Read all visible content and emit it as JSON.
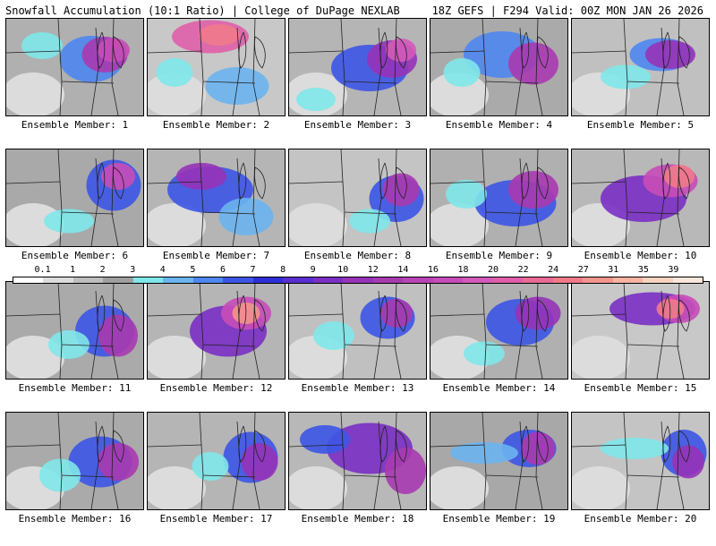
{
  "header": {
    "left_title": "Snowfall Accumulation (10:1 Ratio) | College of DuPage NEXLAB",
    "right_title": "18Z GEFS | F294 Valid: 00Z MON JAN 26 2026"
  },
  "legend": {
    "labels": [
      "0.1",
      "1",
      "2",
      "3",
      "4",
      "5",
      "6",
      "7",
      "8",
      "9",
      "10",
      "12",
      "14",
      "16",
      "18",
      "20",
      "22",
      "24",
      "27",
      "31",
      "35",
      "39"
    ],
    "colors": [
      "#ffffff",
      "#dcdcdc",
      "#bebebe",
      "#9f9f9f",
      "#7fe7ea",
      "#6ab4f0",
      "#4f86f0",
      "#3d55e6",
      "#2f2fd8",
      "#5a2fd0",
      "#7a2fc4",
      "#9633b8",
      "#a83ab0",
      "#b944b4",
      "#c64cb8",
      "#d45aba",
      "#df5fa8",
      "#e86a96",
      "#f07a8a",
      "#f3958c",
      "#f6b3a0",
      "#f8d2c0",
      "#fbe6da"
    ]
  },
  "panels": [
    {
      "label": "Ensemble Member: 1"
    },
    {
      "label": "Ensemble Member: 2"
    },
    {
      "label": "Ensemble Member: 3"
    },
    {
      "label": "Ensemble Member: 4"
    },
    {
      "label": "Ensemble Member: 5"
    },
    {
      "label": "Ensemble Member: 6"
    },
    {
      "label": "Ensemble Member: 7"
    },
    {
      "label": "Ensemble Member: 8"
    },
    {
      "label": "Ensemble Member: 9"
    },
    {
      "label": "Ensemble Member: 10"
    },
    {
      "label": "Ensemble Member: 11"
    },
    {
      "label": "Ensemble Member: 12"
    },
    {
      "label": "Ensemble Member: 13"
    },
    {
      "label": "Ensemble Member: 14"
    },
    {
      "label": "Ensemble Member: 15"
    },
    {
      "label": "Ensemble Member: 16"
    },
    {
      "label": "Ensemble Member: 17"
    },
    {
      "label": "Ensemble Member: 18"
    },
    {
      "label": "Ensemble Member: 19"
    },
    {
      "label": "Ensemble Member: 20"
    }
  ]
}
